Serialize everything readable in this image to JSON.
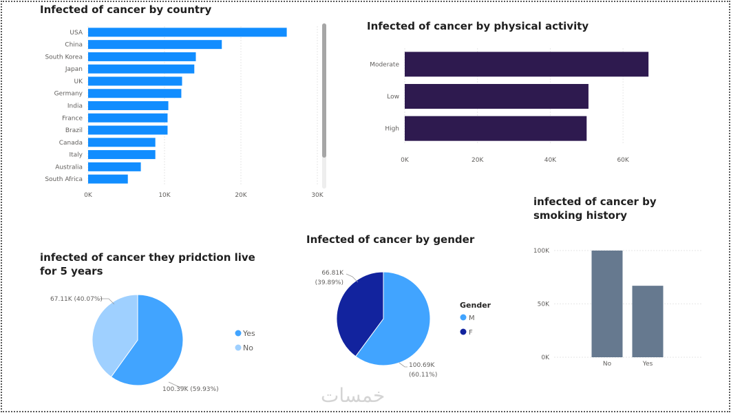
{
  "chart_data": [
    {
      "id": "country",
      "type": "bar",
      "orientation": "horizontal",
      "title": "Infected of cancer by country",
      "categories": [
        "USA",
        "China",
        "South Korea",
        "Japan",
        "UK",
        "Germany",
        "India",
        "France",
        "Brazil",
        "Canada",
        "Italy",
        "Australia",
        "South Africa"
      ],
      "values": [
        26000,
        17500,
        14100,
        13900,
        12300,
        12200,
        10500,
        10400,
        10400,
        8800,
        8800,
        6900,
        5200
      ],
      "xlim": [
        0,
        30000
      ],
      "ticks": [
        0,
        10000,
        20000,
        30000
      ],
      "tick_labels": [
        "0K",
        "10K",
        "20K",
        "30K"
      ],
      "color": "#118dff",
      "grid": true
    },
    {
      "id": "activity",
      "type": "bar",
      "orientation": "horizontal",
      "title": "Infected of cancer by physical activity",
      "categories": [
        "Moderate",
        "Low",
        "High"
      ],
      "values": [
        67000,
        50500,
        50000
      ],
      "xlim": [
        0,
        70000
      ],
      "ticks": [
        0,
        20000,
        40000,
        60000
      ],
      "tick_labels": [
        "0K",
        "20K",
        "40K",
        "60K"
      ],
      "color": "#2e1a4f",
      "grid": true
    },
    {
      "id": "survival",
      "type": "pie",
      "title": "infected of cancer they pridction live for 5 years",
      "slices": [
        {
          "name": "Yes",
          "value": 100.39,
          "label": "100.39K (59.93%)",
          "color": "#41a4ff"
        },
        {
          "name": "No",
          "value": 67.11,
          "label": "67.11K (40.07%)",
          "color": "#9fd0ff"
        }
      ],
      "legend": [
        "Yes",
        "No"
      ]
    },
    {
      "id": "gender",
      "type": "pie",
      "title": "Infected of cancer by gender",
      "legend_title": "Gender",
      "slices": [
        {
          "name": "M",
          "value": 100.69,
          "label_value": "100.69K",
          "label_pct": "(60.11%)",
          "color": "#41a4ff"
        },
        {
          "name": "F",
          "value": 66.81,
          "label_value": "66.81K",
          "label_pct": "(39.89%)",
          "color": "#12239e"
        }
      ],
      "legend": [
        "M",
        "F"
      ]
    },
    {
      "id": "smoking",
      "type": "bar",
      "orientation": "vertical",
      "title": "infected of cancer by smoking history",
      "categories": [
        "No",
        "Yes"
      ],
      "values": [
        100000,
        67000
      ],
      "ylim": [
        0,
        100000
      ],
      "ticks": [
        0,
        50000,
        100000
      ],
      "tick_labels": [
        "0K",
        "50K",
        "100K"
      ],
      "color": "#66798f",
      "grid": true
    }
  ],
  "watermark": "خمسات"
}
